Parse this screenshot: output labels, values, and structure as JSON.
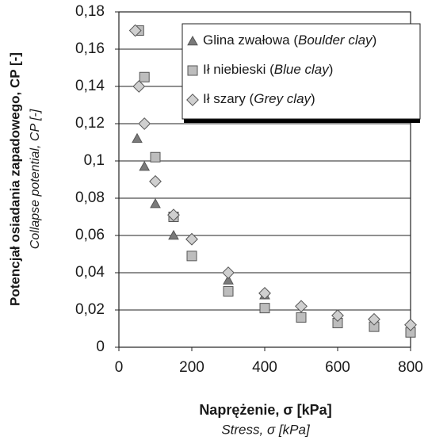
{
  "chart_data": {
    "type": "scatter",
    "xlabel": "Naprężenie, σ [kPa]",
    "xlabel_en": "Stress, σ [kPa]",
    "ylabel": "Potencjał osiadania zapadowego, CP [-]",
    "ylabel_en": "Collapse potential, CP [-]",
    "xlim": [
      0,
      800
    ],
    "xticks": [
      0,
      200,
      400,
      600,
      800
    ],
    "ylim": [
      0,
      0.18
    ],
    "yticks": [
      0,
      {
        "value": 0.02,
        "label": "0,02"
      },
      {
        "value": 0.04,
        "label": "0,04"
      },
      {
        "value": 0.06,
        "label": "0,06"
      },
      {
        "value": 0.08,
        "label": "0,08"
      },
      {
        "value": 0.1,
        "label": "0,1"
      },
      {
        "value": 0.12,
        "label": "0,12"
      },
      {
        "value": 0.14,
        "label": "0,14"
      },
      {
        "value": 0.16,
        "label": "0,16"
      },
      {
        "value": 0.18,
        "label": "0,18"
      }
    ],
    "grid": true,
    "legend": "upper right",
    "series": [
      {
        "name": "Glina zwałowa (Boulder clay)",
        "marker": "triangle",
        "color": "#7a7a7a",
        "x": [
          50,
          70,
          100,
          150,
          150,
          300,
          400
        ],
        "values": [
          0.112,
          0.097,
          0.077,
          0.071,
          0.06,
          0.036,
          0.028
        ]
      },
      {
        "name": "Ił niebieski (Blue clay)",
        "marker": "square",
        "color": "#bdbdbd",
        "x": [
          55,
          70,
          100,
          150,
          200,
          300,
          400,
          500,
          600,
          700,
          800
        ],
        "values": [
          0.17,
          0.145,
          0.102,
          0.07,
          0.049,
          0.03,
          0.021,
          0.016,
          0.013,
          0.011,
          0.008
        ]
      },
      {
        "name": "Ił szary (Grey clay)",
        "marker": "diamond",
        "color": "#cfcfcf",
        "x": [
          45,
          55,
          70,
          100,
          150,
          200,
          300,
          400,
          500,
          600,
          700,
          800
        ],
        "values": [
          0.17,
          0.14,
          0.12,
          0.089,
          0.071,
          0.058,
          0.04,
          0.029,
          0.022,
          0.017,
          0.015,
          0.012
        ]
      }
    ]
  }
}
